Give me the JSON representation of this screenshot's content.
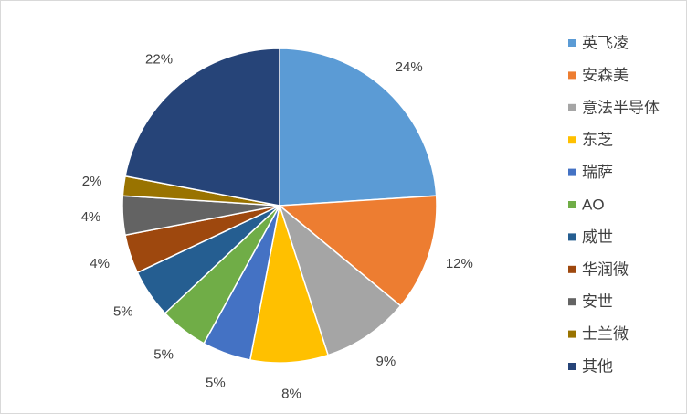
{
  "chart_data": {
    "type": "pie",
    "categories": [
      "英飞凌",
      "安森美",
      "意法半导体",
      "东芝",
      "瑞萨",
      "AO",
      "威世",
      "华润微",
      "安世",
      "士兰微",
      "其他"
    ],
    "values": [
      24,
      12,
      9,
      8,
      5,
      5,
      5,
      4,
      4,
      2,
      22
    ],
    "value_labels": [
      "24%",
      "12%",
      "9%",
      "8%",
      "5%",
      "5%",
      "5%",
      "4%",
      "4%",
      "2%",
      "22%"
    ],
    "colors": [
      "#5b9bd5",
      "#ed7d31",
      "#a5a5a5",
      "#ffc000",
      "#4472c4",
      "#70ad47",
      "#255e91",
      "#9e480e",
      "#636363",
      "#997300",
      "#264478"
    ],
    "legend": "right"
  }
}
